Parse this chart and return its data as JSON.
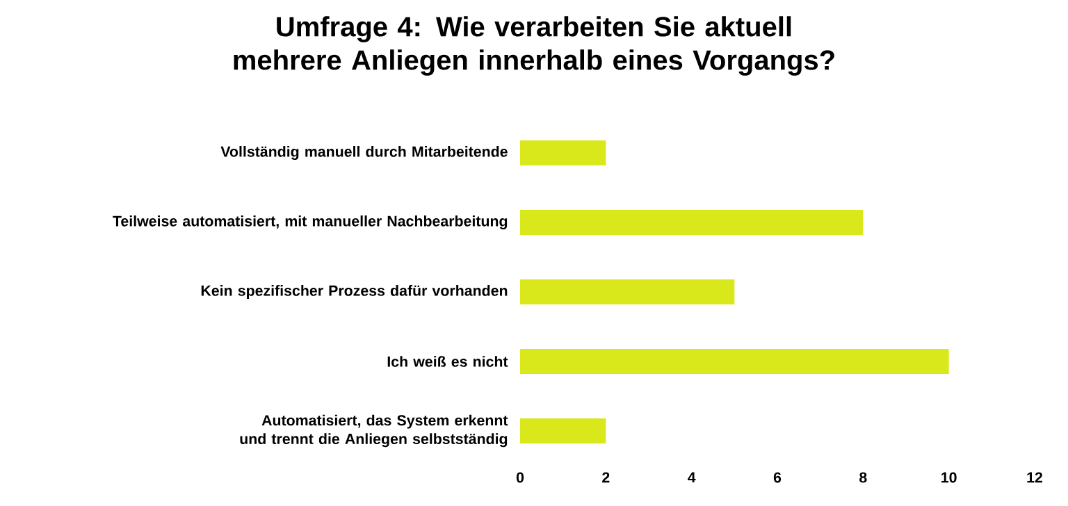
{
  "chart_data": {
    "type": "bar",
    "orientation": "horizontal",
    "title": "Umfrage 4: Wie verarbeiten Sie aktuell mehrere Anliegen innerhalb eines Vorgangs?",
    "categories": [
      "Vollständig manuell durch Mitarbeitende",
      "Teilweise automatisiert, mit manueller Nachbearbeitung",
      "Kein spezifischer Prozess dafür vorhanden",
      "Ich weiß es nicht",
      "Automatisiert, das System erkennt und trennt die Anliegen selbstständig"
    ],
    "values": [
      2,
      8,
      5,
      10,
      2
    ],
    "color": "#d9e81a",
    "xlim": [
      0,
      12
    ],
    "xticks": [
      0,
      2,
      4,
      6,
      8,
      10,
      12
    ]
  }
}
